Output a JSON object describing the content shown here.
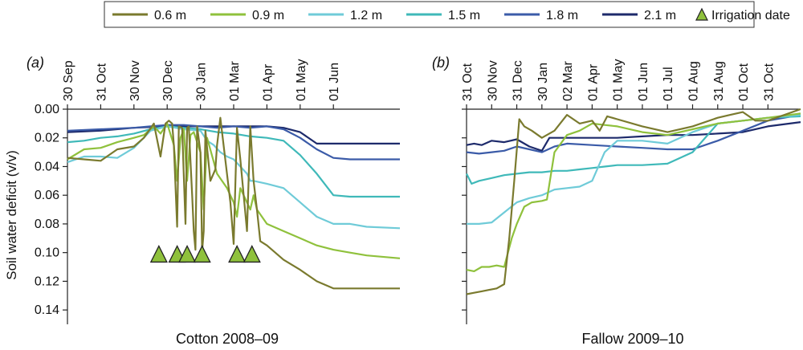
{
  "colors": {
    "d06": "#7a7a2e",
    "d09": "#8fc13c",
    "d12": "#6fcbd8",
    "d15": "#3fb9b9",
    "d18": "#3b5ba8",
    "d21": "#1d2a6b",
    "marker": "#8fc13c"
  },
  "legend": {
    "series": [
      "0.6 m",
      "0.9 m",
      "1.2 m",
      "1.5 m",
      "1.8 m",
      "2.1 m"
    ],
    "irrigation_label": "Irrigation date"
  },
  "ylabel": "Soil water deficit (v/v)",
  "chart_data": [
    {
      "type": "line",
      "panel_label": "(a)",
      "title": "Cotton 2008–09",
      "ylabel": "Soil water deficit (v/v)",
      "y_inverted": true,
      "ylim": [
        0.0,
        0.15
      ],
      "yticks": [
        "0.00",
        "0.02",
        "0.04",
        "0.06",
        "0.08",
        "0.10",
        "0.12",
        "0.14"
      ],
      "xlim": [
        0,
        10
      ],
      "xtick_labels": [
        "30 Sep",
        "31 Oct",
        "30 Nov",
        "30 Dec",
        "30 Jan",
        "01 Mar",
        "01 Apr",
        "01 May",
        "01 Jun"
      ],
      "xtick_positions": [
        0,
        1,
        2,
        3,
        4,
        5,
        6,
        7,
        8
      ],
      "irrigation_dates": [
        {
          "x": 2.75,
          "y": 0.101
        },
        {
          "x": 3.3,
          "y": 0.101
        },
        {
          "x": 3.6,
          "y": 0.101
        },
        {
          "x": 4.05,
          "y": 0.101
        },
        {
          "x": 5.1,
          "y": 0.101
        },
        {
          "x": 5.55,
          "y": 0.101
        }
      ],
      "series": [
        {
          "name": "0.6 m",
          "color_key": "d06",
          "x": [
            0,
            0.5,
            1,
            1.5,
            2,
            2.3,
            2.6,
            2.8,
            2.95,
            3.05,
            3.15,
            3.2,
            3.3,
            3.35,
            3.45,
            3.55,
            3.6,
            3.65,
            3.75,
            3.8,
            3.85,
            3.9,
            4,
            4.05,
            4.1,
            4.15,
            4.3,
            4.45,
            4.5,
            4.6,
            4.9,
            5,
            5.1,
            5.2,
            5.4,
            5.5,
            5.6,
            5.7,
            5.8,
            6,
            6.5,
            7,
            7.5,
            8,
            8.5,
            9,
            10
          ],
          "y": [
            0.034,
            0.035,
            0.036,
            0.028,
            0.026,
            0.02,
            0.01,
            0.033,
            0.01,
            0.008,
            0.01,
            0.025,
            0.082,
            0.012,
            0.013,
            0.08,
            0.013,
            0.012,
            0.06,
            0.085,
            0.098,
            0.012,
            0.03,
            0.099,
            0.085,
            0.015,
            0.05,
            0.042,
            0.025,
            0.006,
            0.065,
            0.094,
            0.013,
            0.035,
            0.085,
            0.012,
            0.05,
            0.07,
            0.092,
            0.095,
            0.105,
            0.112,
            0.12,
            0.125,
            0.125,
            0.125,
            0.125
          ]
        },
        {
          "name": "0.9 m",
          "color_key": "d09",
          "x": [
            0,
            0.5,
            1,
            1.5,
            2,
            2.3,
            2.6,
            2.8,
            3,
            3.2,
            3.3,
            3.4,
            3.5,
            3.6,
            3.7,
            3.8,
            4,
            4.1,
            4.2,
            4.5,
            4.8,
            5,
            5.1,
            5.2,
            5.5,
            5.6,
            5.7,
            6,
            6.5,
            7,
            7.5,
            8,
            8.5,
            9,
            10
          ],
          "y": [
            0.035,
            0.028,
            0.027,
            0.023,
            0.02,
            0.018,
            0.012,
            0.017,
            0.01,
            0.025,
            0.05,
            0.02,
            0.014,
            0.05,
            0.018,
            0.016,
            0.03,
            0.07,
            0.02,
            0.045,
            0.055,
            0.065,
            0.075,
            0.055,
            0.07,
            0.06,
            0.07,
            0.08,
            0.085,
            0.09,
            0.095,
            0.098,
            0.1,
            0.102,
            0.104
          ]
        },
        {
          "name": "1.2 m",
          "color_key": "d12",
          "x": [
            0,
            0.5,
            1,
            1.5,
            2,
            2.5,
            3,
            3.5,
            4,
            4.2,
            4.4,
            4.6,
            4.8,
            5,
            5.2,
            5.4,
            5.5,
            5.6,
            6,
            6.5,
            7,
            7.5,
            8,
            8.5,
            9,
            10
          ],
          "y": [
            0.037,
            0.033,
            0.033,
            0.034,
            0.027,
            0.015,
            0.012,
            0.014,
            0.015,
            0.022,
            0.025,
            0.03,
            0.033,
            0.035,
            0.04,
            0.045,
            0.05,
            0.05,
            0.052,
            0.055,
            0.065,
            0.075,
            0.08,
            0.08,
            0.082,
            0.083
          ]
        },
        {
          "name": "1.5 m",
          "color_key": "d15",
          "x": [
            0,
            0.5,
            1,
            1.5,
            2,
            2.5,
            3,
            3.5,
            4,
            4.5,
            5,
            5.5,
            6,
            6.5,
            7,
            7.5,
            8,
            8.5,
            9,
            10
          ],
          "y": [
            0.023,
            0.022,
            0.02,
            0.019,
            0.017,
            0.014,
            0.012,
            0.013,
            0.014,
            0.016,
            0.017,
            0.019,
            0.02,
            0.022,
            0.032,
            0.045,
            0.06,
            0.061,
            0.061,
            0.061
          ]
        },
        {
          "name": "1.8 m",
          "color_key": "d18",
          "x": [
            0,
            1,
            2,
            2.5,
            3,
            3.5,
            4,
            4.5,
            5,
            5.5,
            6,
            6.5,
            7,
            7.5,
            8,
            8.5,
            9,
            10
          ],
          "y": [
            0.015,
            0.014,
            0.013,
            0.012,
            0.011,
            0.011,
            0.012,
            0.013,
            0.012,
            0.013,
            0.012,
            0.014,
            0.02,
            0.028,
            0.034,
            0.035,
            0.035,
            0.035
          ]
        },
        {
          "name": "2.1 m",
          "color_key": "d21",
          "x": [
            0,
            1,
            2,
            3,
            4,
            5,
            6,
            6.5,
            7,
            7.5,
            8,
            8.5,
            9,
            10
          ],
          "y": [
            0.016,
            0.015,
            0.013,
            0.012,
            0.012,
            0.012,
            0.012,
            0.013,
            0.016,
            0.024,
            0.024,
            0.024,
            0.024,
            0.024
          ]
        }
      ]
    },
    {
      "type": "line",
      "panel_label": "(b)",
      "title": "Fallow 2009–10",
      "y_inverted": true,
      "ylim": [
        0.0,
        0.15
      ],
      "xlim": [
        0,
        13.3
      ],
      "xtick_labels": [
        "31 Oct",
        "30 Nov",
        "31 Dec",
        "30 Jan",
        "02 Mar",
        "01 Apr",
        "01 May",
        "01 Jun",
        "01 Jul",
        "01 Aug",
        "31 Aug",
        "01 Oct",
        "31 Oct"
      ],
      "xtick_positions": [
        0,
        1,
        2,
        3,
        4,
        5,
        6,
        7,
        8,
        9,
        10,
        11,
        12
      ],
      "series": [
        {
          "name": "0.6 m",
          "color_key": "d06",
          "x": [
            0,
            0.3,
            0.6,
            0.9,
            1.2,
            1.5,
            1.7,
            1.9,
            2.1,
            2.3,
            2.6,
            3,
            3.5,
            4,
            4.5,
            5,
            5.3,
            5.6,
            6,
            7,
            8,
            9,
            10,
            10.5,
            11,
            11.5,
            12,
            13.3
          ],
          "y": [
            0.129,
            0.128,
            0.127,
            0.126,
            0.125,
            0.122,
            0.09,
            0.05,
            0.007,
            0.012,
            0.015,
            0.02,
            0.015,
            0.004,
            0.01,
            0.008,
            0.015,
            0.005,
            0.007,
            0.012,
            0.016,
            0.012,
            0.006,
            0.004,
            0.002,
            0.008,
            0.008,
            0.0
          ]
        },
        {
          "name": "0.9 m",
          "color_key": "d09",
          "x": [
            0,
            0.3,
            0.6,
            0.9,
            1.2,
            1.5,
            1.8,
            2,
            2.3,
            2.6,
            3,
            3.2,
            3.5,
            4,
            4.5,
            5,
            5.5,
            6,
            7,
            8,
            9,
            10,
            11,
            12,
            13.3
          ],
          "y": [
            0.112,
            0.113,
            0.11,
            0.11,
            0.109,
            0.11,
            0.09,
            0.08,
            0.068,
            0.065,
            0.064,
            0.063,
            0.03,
            0.018,
            0.015,
            0.01,
            0.011,
            0.012,
            0.016,
            0.018,
            0.014,
            0.01,
            0.008,
            0.006,
            0.003
          ]
        },
        {
          "name": "1.2 m",
          "color_key": "d12",
          "x": [
            0,
            0.5,
            1,
            1.5,
            2,
            2.5,
            3,
            3.5,
            4,
            4.5,
            5,
            5.5,
            6,
            7,
            8,
            9,
            10,
            11,
            12,
            13.3
          ],
          "y": [
            0.08,
            0.08,
            0.079,
            0.072,
            0.065,
            0.062,
            0.06,
            0.056,
            0.055,
            0.054,
            0.05,
            0.03,
            0.022,
            0.022,
            0.024,
            0.016,
            0.01,
            0.008,
            0.006,
            0.004
          ]
        },
        {
          "name": "1.5 m",
          "color_key": "d15",
          "x": [
            0,
            0.2,
            0.5,
            1,
            1.5,
            2,
            2.5,
            3,
            3.5,
            4,
            4.5,
            5,
            5.5,
            6,
            7,
            8,
            9,
            10,
            11,
            12,
            13.3
          ],
          "y": [
            0.045,
            0.052,
            0.05,
            0.048,
            0.046,
            0.045,
            0.044,
            0.044,
            0.043,
            0.043,
            0.042,
            0.041,
            0.04,
            0.039,
            0.039,
            0.038,
            0.03,
            0.01,
            0.008,
            0.006,
            0.005
          ]
        },
        {
          "name": "1.8 m",
          "color_key": "d18",
          "x": [
            0,
            0.5,
            1,
            1.5,
            2,
            2.5,
            3,
            3.5,
            4,
            5,
            6,
            7,
            8,
            9,
            10,
            11,
            12,
            13.3
          ],
          "y": [
            0.03,
            0.031,
            0.03,
            0.029,
            0.026,
            0.028,
            0.03,
            0.026,
            0.024,
            0.025,
            0.026,
            0.027,
            0.028,
            0.028,
            0.022,
            0.015,
            0.008,
            0.004
          ]
        },
        {
          "name": "2.1 m",
          "color_key": "d21",
          "x": [
            0,
            0.3,
            0.6,
            1,
            1.5,
            2,
            2.5,
            3,
            3.3,
            4,
            5,
            6,
            7,
            8,
            9,
            10,
            11,
            12,
            13.3
          ],
          "y": [
            0.025,
            0.024,
            0.025,
            0.022,
            0.023,
            0.021,
            0.026,
            0.029,
            0.02,
            0.02,
            0.02,
            0.02,
            0.019,
            0.018,
            0.018,
            0.017,
            0.016,
            0.012,
            0.009
          ]
        }
      ]
    }
  ]
}
